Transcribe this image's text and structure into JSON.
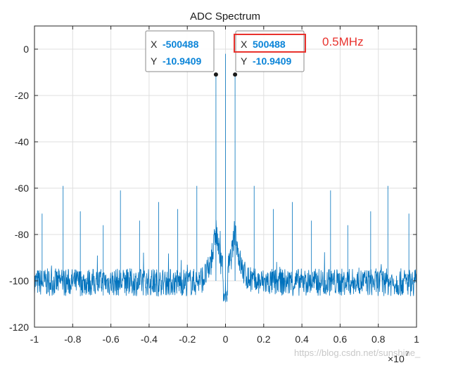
{
  "chart_data": {
    "type": "line",
    "title": "ADC Spectrum",
    "xlabel": "",
    "ylabel": "",
    "xlim": [
      -10000000,
      10000000
    ],
    "ylim": [
      -120,
      10
    ],
    "x_exponent_label": "×10",
    "x_exponent_power": "7",
    "x_ticks": [
      -1,
      -0.8,
      -0.6,
      -0.4,
      -0.2,
      0,
      0.2,
      0.4,
      0.6,
      0.8,
      1
    ],
    "x_tick_labels": [
      "-1",
      "-0.8",
      "-0.6",
      "-0.4",
      "-0.2",
      "0",
      "0.2",
      "0.4",
      "0.6",
      "0.8",
      "1"
    ],
    "y_ticks": [
      0,
      -20,
      -40,
      -60,
      -80,
      -100,
      -120
    ],
    "y_tick_labels": [
      "0",
      "-20",
      "-40",
      "-60",
      "-80",
      "-100",
      "-120"
    ],
    "grid": true,
    "series_color": "#0072bd",
    "noise_floor_db": -100,
    "noise_amplitude_db": 12,
    "peaks": [
      {
        "x": -500488,
        "y": -10.9409
      },
      {
        "x": 500488,
        "y": -10.9409
      },
      {
        "x": 0,
        "y": -2
      },
      {
        "x": -8500000,
        "y": -59
      },
      {
        "x": -7600000,
        "y": -70
      },
      {
        "x": -6400000,
        "y": -76
      },
      {
        "x": -5500000,
        "y": -61
      },
      {
        "x": -4500000,
        "y": -74
      },
      {
        "x": -3500000,
        "y": -66
      },
      {
        "x": -2500000,
        "y": -69
      },
      {
        "x": -1500000,
        "y": -59
      },
      {
        "x": -9600000,
        "y": -71
      },
      {
        "x": 1500000,
        "y": -59
      },
      {
        "x": 2500000,
        "y": -69
      },
      {
        "x": 3500000,
        "y": -66
      },
      {
        "x": 4500000,
        "y": -74
      },
      {
        "x": 5500000,
        "y": -61
      },
      {
        "x": 6400000,
        "y": -76
      },
      {
        "x": 7600000,
        "y": -70
      },
      {
        "x": 8500000,
        "y": -59
      },
      {
        "x": 9600000,
        "y": -71
      }
    ],
    "datatips": [
      {
        "x_key": "X",
        "x_value": "-500488",
        "y_key": "Y",
        "y_value": "-10.9409",
        "px": -500488,
        "py": -10.9409
      },
      {
        "x_key": "X",
        "x_value": "500488",
        "y_key": "Y",
        "y_value": "-10.9409",
        "px": 500488,
        "py": -10.9409
      }
    ],
    "annotation": "0.5MHz",
    "highlight_color": "#e8322d"
  },
  "watermark": "https://blog.csdn.net/sunshine_"
}
